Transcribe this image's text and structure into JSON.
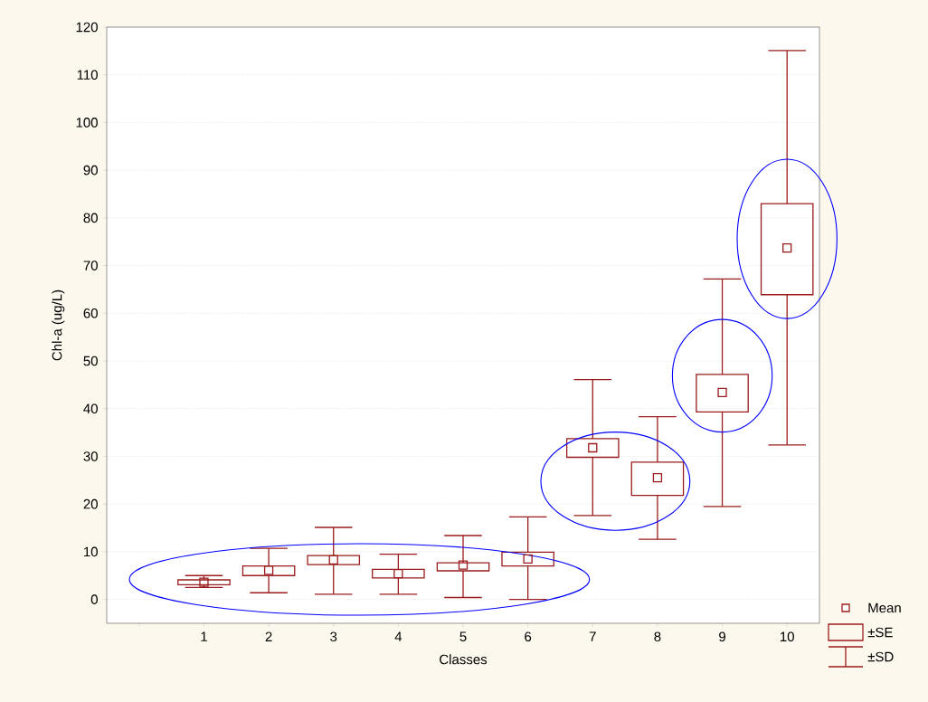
{
  "chart_data": {
    "type": "box",
    "xlabel": "Classes",
    "ylabel": "Chl-a (ug/L)",
    "categories": [
      "1",
      "2",
      "3",
      "4",
      "5",
      "6",
      "7",
      "8",
      "9",
      "10"
    ],
    "color": "#9b1c1c",
    "boxes": [
      {
        "low": 2.5,
        "q1": 3.1,
        "q3": 4.1,
        "high": 5.0,
        "mean": 3.6
      },
      {
        "low": 1.4,
        "q1": 5.0,
        "q3": 7.0,
        "high": 10.7,
        "mean": 6.1
      },
      {
        "low": 1.1,
        "q1": 7.3,
        "q3": 9.2,
        "high": 15.1,
        "mean": 8.3
      },
      {
        "low": 1.1,
        "q1": 4.5,
        "q3": 6.3,
        "high": 9.5,
        "mean": 5.4
      },
      {
        "low": 0.4,
        "q1": 6.0,
        "q3": 7.7,
        "high": 13.4,
        "mean": 7.2
      },
      {
        "low": 0,
        "q1": 7.0,
        "q3": 9.9,
        "high": 17.3,
        "mean": 8.5
      },
      {
        "low": 17.6,
        "q1": 29.8,
        "q3": 33.7,
        "high": 46.1,
        "mean": 31.8
      },
      {
        "low": 12.6,
        "q1": 21.8,
        "q3": 28.8,
        "high": 38.3,
        "mean": 25.5
      },
      {
        "low": 19.5,
        "q1": 39.3,
        "q3": 47.2,
        "high": 67.2,
        "mean": 43.4
      },
      {
        "low": 32.4,
        "q1": 63.9,
        "q3": 83.0,
        "high": 115.1,
        "mean": 73.7
      }
    ],
    "ylim": [
      -5,
      120
    ],
    "yticks": [
      0,
      10,
      20,
      30,
      40,
      50,
      60,
      70,
      80,
      90,
      100,
      110,
      120
    ],
    "grid": "y",
    "marker": "square",
    "annotations": [
      "Mean",
      "±SE",
      "±SD"
    ]
  }
}
